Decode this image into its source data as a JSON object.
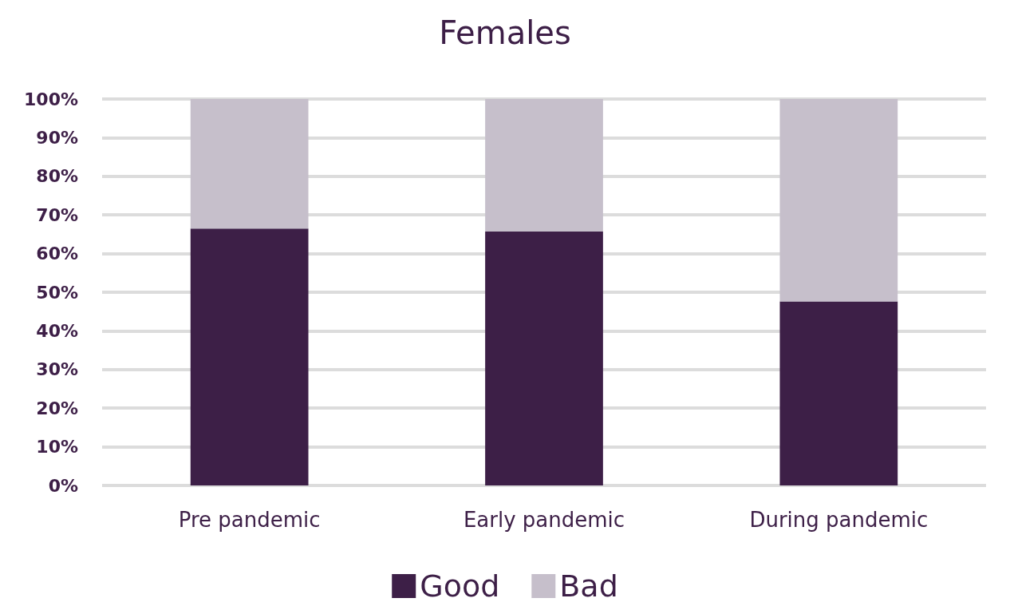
{
  "chart_data": {
    "type": "bar",
    "title": "Females",
    "categories": [
      "Pre pandemic",
      "Early pandemic",
      "During pandemic"
    ],
    "series": [
      {
        "name": "Good",
        "color": "#3d1f47",
        "values": [
          66.5,
          65.7,
          47.6
        ]
      },
      {
        "name": "Bad",
        "color": "#c6bfcb",
        "values": [
          33.5,
          34.3,
          52.4
        ]
      }
    ],
    "stacked": true,
    "ylim": [
      0,
      100
    ],
    "yticks": [
      {
        "value": 0,
        "label": "0%"
      },
      {
        "value": 10,
        "label": "10%"
      },
      {
        "value": 20,
        "label": "20%"
      },
      {
        "value": 30,
        "label": "30%"
      },
      {
        "value": 40,
        "label": "40%"
      },
      {
        "value": 50,
        "label": "50%"
      },
      {
        "value": 60,
        "label": "60%"
      },
      {
        "value": 70,
        "label": "70%"
      },
      {
        "value": 80,
        "label": "80%"
      },
      {
        "value": 90,
        "label": "90%"
      },
      {
        "value": 100,
        "label": "100%"
      }
    ],
    "grid": "y",
    "legend": "bottom"
  }
}
